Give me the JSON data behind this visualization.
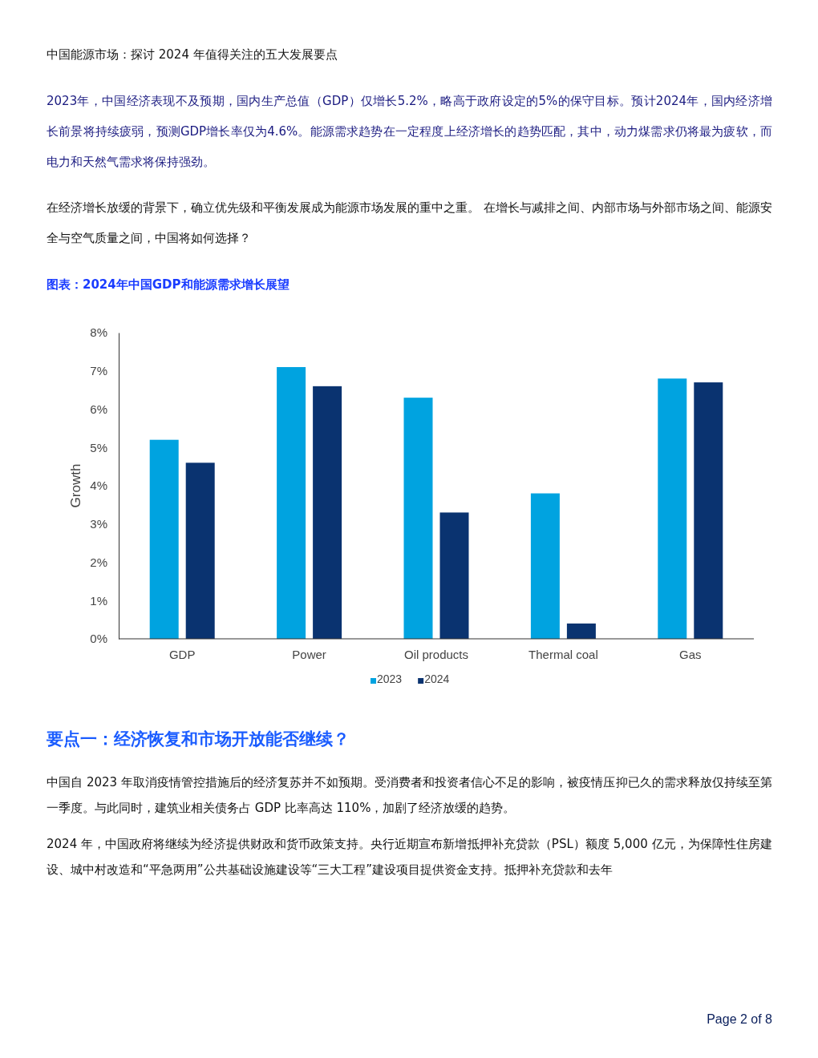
{
  "chart_data": {
    "type": "bar",
    "title": "图表：2024年中国GDP和能源需求增长展望",
    "subtitle": "中国能源市场：探讨 2024 年值得关注的五大发展要点",
    "ylabel": "Growth",
    "categories": [
      "GDP",
      "Power",
      "Oil products",
      "Thermal coal",
      "Gas"
    ],
    "series": [
      {
        "name": "2023",
        "color": "#00a3e0",
        "values": [
          5.2,
          7.1,
          6.3,
          3.8,
          6.8
        ]
      },
      {
        "name": "2024",
        "color": "#0a3370",
        "values": [
          4.6,
          6.6,
          3.3,
          0.4,
          6.7
        ]
      }
    ],
    "ylim": [
      0,
      8
    ],
    "yticks": [
      {
        "value": 0,
        "label": "0%"
      },
      {
        "value": 1,
        "label": "1%"
      },
      {
        "value": 2,
        "label": "2%"
      },
      {
        "value": 3,
        "label": "3%"
      },
      {
        "value": 4,
        "label": "4%"
      },
      {
        "value": 5,
        "label": "5%"
      },
      {
        "value": 6,
        "label": "6%"
      },
      {
        "value": 7,
        "label": "7%"
      },
      {
        "value": 8,
        "label": "8%"
      }
    ],
    "grid": false,
    "legend": "bottom",
    "annotations": [
      "2023年，中国经济表现不及预期，国内生产总值（GDP）仅增长5.2%，略高于政府设定的5%的保守目标。预计2024年，国内经济增长前景将持续疲弱，预测GDP增长率仅为4.6%。能源需求趋势在一定程度上经济增长的趋势匹配，其中，动力煤需求仍将最为疲软，而电力和天然气需求将保持强劲。",
      "在经济增长放缓的背景下，确立优先级和平衡发展成为能源市场发展的重中之重。 在增长与减排之间、内部市场与外部市场之间、能源安全与空气质量之间，中国将如何选择？",
      "要点一：经济恢复和市场开放能否继续？",
      "中国自 2023 年取消疫情管控措施后的经济复苏并不如预期。受消费者和投资者信心不足的影响，被疫情压抑已久的需求释放仅持续至第一季度。与此同时，建筑业相关债务占 GDP 比率高达 110%，加剧了经济放缓的趋势。",
      "2024 年，中国政府将继续为经济提供财政和货币政策支持。央行近期宣布新增抵押补充贷款（PSL）额度 5,000 亿元，为保障性住房建设、城中村改造和“平急两用”公共基础设施建设等“三大工程”建设项目提供资金支持。抵押补充贷款和去年",
      "Page 2 of 8"
    ]
  }
}
